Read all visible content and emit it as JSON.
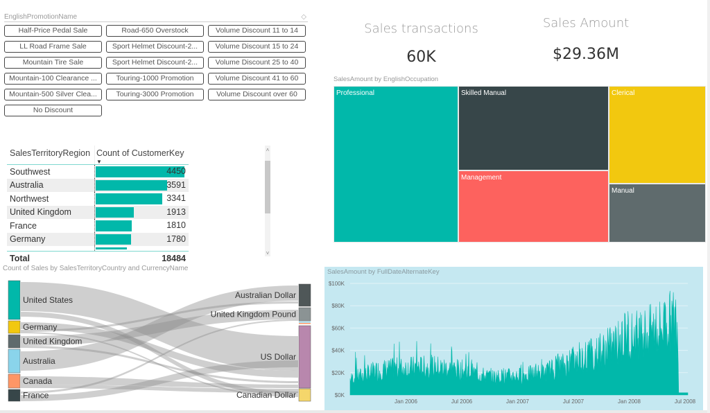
{
  "slicer": {
    "title": "EnglishPromotionName",
    "eraser_icon": "eraser-icon",
    "items": [
      "Half-Price Pedal Sale",
      "Road-650 Overstock",
      "Volume Discount 11 to 14",
      "LL Road Frame Sale",
      "Sport Helmet Discount-2...",
      "Volume Discount 15 to 24",
      "Mountain Tire Sale",
      "Sport Helmet Discount-2...",
      "Volume Discount 25 to 40",
      "Mountain-100 Clearance ...",
      "Touring-1000 Promotion",
      "Volume Discount 41 to 60",
      "Mountain-500 Silver Clea...",
      "Touring-3000 Promotion",
      "Volume Discount over 60",
      "No Discount"
    ]
  },
  "table": {
    "headers": [
      "SalesTerritoryRegion",
      "Count of CustomerKey"
    ],
    "sort_icon": "sort-descending-icon",
    "max": 4450,
    "rows": [
      {
        "region": "Southwest",
        "count": 4450
      },
      {
        "region": "Australia",
        "count": 3591
      },
      {
        "region": "Northwest",
        "count": 3341
      },
      {
        "region": "United Kingdom",
        "count": 1913
      },
      {
        "region": "France",
        "count": 1810
      },
      {
        "region": "Germany",
        "count": 1780
      }
    ],
    "partial_row_count": 1571,
    "total_label": "Total",
    "total_value": "18484",
    "scroll_up": "^",
    "scroll_down": "v"
  },
  "cards": {
    "transactions": {
      "title": "Sales transactions",
      "value": "60K"
    },
    "amount": {
      "title": "Sales Amount",
      "value": "$29.36M"
    }
  },
  "treemap": {
    "title": "SalesAmount by EnglishOccupation",
    "tiles": [
      {
        "label": "Professional",
        "color": "#01b8aa"
      },
      {
        "label": "Skilled Manual",
        "color": "#374649"
      },
      {
        "label": "Management",
        "color": "#fd625e"
      },
      {
        "label": "Clerical",
        "color": "#f2c80f"
      },
      {
        "label": "Manual",
        "color": "#5f6b6d"
      }
    ]
  },
  "sankey": {
    "title": "Count of Sales by SalesTerritoryCountry and CurrencyName",
    "sources": [
      {
        "label": "United States",
        "color": "#01b8aa"
      },
      {
        "label": "Germany",
        "color": "#f2c80f"
      },
      {
        "label": "United Kingdom",
        "color": "#5f6b6d"
      },
      {
        "label": "Australia",
        "color": "#8ad4eb"
      },
      {
        "label": "Canada",
        "color": "#fe9666"
      },
      {
        "label": "France",
        "color": "#374649"
      }
    ],
    "targets": [
      {
        "label": "Australian Dollar",
        "color": "#4f5758"
      },
      {
        "label": "United Kingdom Pound",
        "color": "#8b9394"
      },
      {
        "label": "US Dollar",
        "color": "#b887ad"
      },
      {
        "label": "Canadian Dollar",
        "color": "#f5d66b"
      }
    ]
  },
  "chart_data": {
    "type": "area",
    "title": "SalesAmount by FullDateAlternateKey",
    "xlabel": "",
    "ylabel": "",
    "x_ticks": [
      "Jan 2006",
      "Jul 2006",
      "Jan 2007",
      "Jul 2007",
      "Jan 2008",
      "Jul 2008"
    ],
    "y_ticks": [
      "$0K",
      "$20K",
      "$40K",
      "$60K",
      "$80K",
      "$100K"
    ],
    "ylim": [
      0,
      100000
    ],
    "x_range": [
      "Jul 2005",
      "Jul 2008"
    ],
    "grid": true,
    "color": "#01b8aa",
    "monthly_approx_peaks_k": [
      {
        "period": "Jul 2005",
        "typical": 14,
        "peak": 38
      },
      {
        "period": "Oct 2005",
        "typical": 22,
        "peak": 42
      },
      {
        "period": "Jan 2006",
        "typical": 24,
        "peak": 55
      },
      {
        "period": "Apr 2006",
        "typical": 25,
        "peak": 46
      },
      {
        "period": "Jul 2006",
        "typical": 22,
        "peak": 44
      },
      {
        "period": "Oct 2006",
        "typical": 16,
        "peak": 24
      },
      {
        "period": "Jan 2007",
        "typical": 17,
        "peak": 30
      },
      {
        "period": "Apr 2007",
        "typical": 20,
        "peak": 33
      },
      {
        "period": "Jul 2007",
        "typical": 30,
        "peak": 46
      },
      {
        "period": "Oct 2007",
        "typical": 38,
        "peak": 58
      },
      {
        "period": "Jan 2008",
        "typical": 52,
        "peak": 77
      },
      {
        "period": "Apr 2008",
        "typical": 58,
        "peak": 82
      },
      {
        "period": "Jun 2008",
        "typical": 68,
        "peak": 96
      },
      {
        "period": "Jul 2008",
        "typical": 2,
        "peak": 3
      }
    ]
  }
}
